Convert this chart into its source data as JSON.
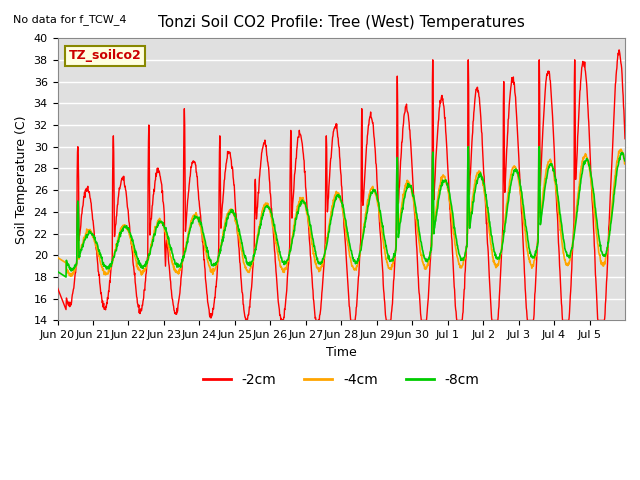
{
  "title": "Tonzi Soil CO2 Profile: Tree (West) Temperatures",
  "no_data_text": "No data for f_TCW_4",
  "xlabel": "Time",
  "ylabel": "Soil Temperature (C)",
  "ylim": [
    14,
    40
  ],
  "yticks": [
    14,
    16,
    18,
    20,
    22,
    24,
    26,
    28,
    30,
    32,
    34,
    36,
    38,
    40
  ],
  "annotation_box_text": "TZ_soilco2",
  "legend_labels": [
    "-2cm",
    "-4cm",
    "-8cm"
  ],
  "line_colors": [
    "#ff0000",
    "#ffa500",
    "#00cc00"
  ],
  "plot_bg_color": "#e0e0e0",
  "grid_color": "#ffffff",
  "tick_labels": [
    "Jun 20",
    "Jun 21",
    "Jun 22",
    "Jun 23",
    "Jun 24",
    "Jun 25",
    "Jun 26",
    "Jun 27",
    "Jun 28",
    "Jun 29",
    "Jun 30",
    "Jul 1",
    "Jul 2",
    "Jul 3",
    "Jul 4",
    "Jul 5"
  ]
}
